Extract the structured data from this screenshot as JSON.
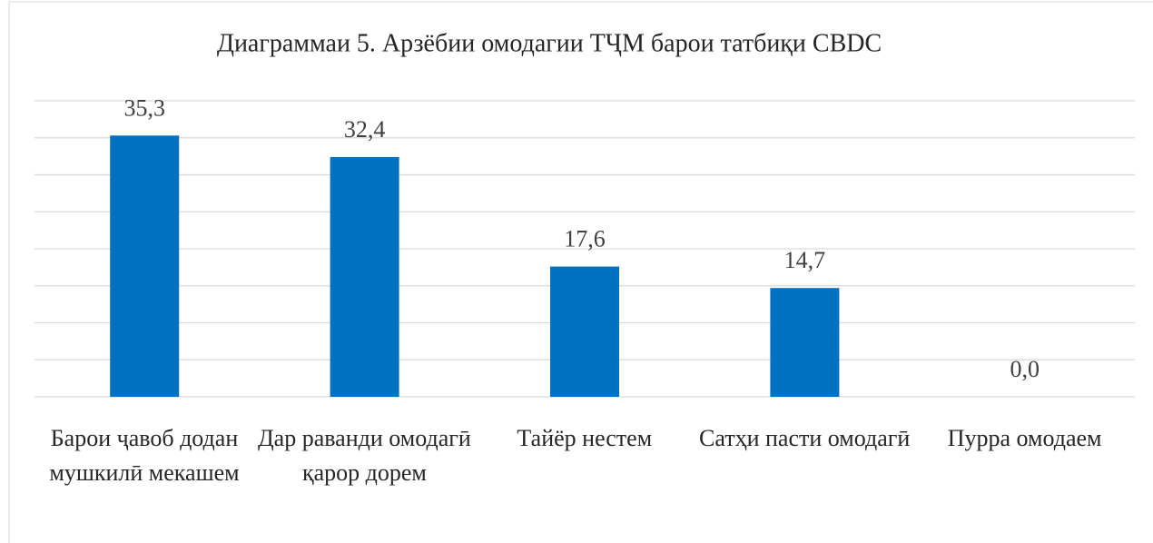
{
  "chart_data": {
    "type": "bar",
    "title": "Диаграммаи 5.  Арзёбии омодагии ТҶМ барои татбиқи CBDC",
    "categories": [
      "Барои ҷавоб додан мушкилӣ мекашем",
      "Дар раванди омодагӣ қарор дорем",
      "Тайёр нестем",
      "Сатҳи пасти омодагӣ",
      "Пурра омодаем"
    ],
    "values": [
      35.3,
      32.4,
      17.6,
      14.7,
      0.0
    ],
    "value_labels": [
      "35,3",
      "32,4",
      "17,6",
      "14,7",
      "0,0"
    ],
    "color": "#0070c0",
    "ylim": [
      0,
      40
    ],
    "yticks": [
      0,
      5,
      10,
      15,
      20,
      25,
      30,
      35,
      40
    ],
    "grid": true
  }
}
